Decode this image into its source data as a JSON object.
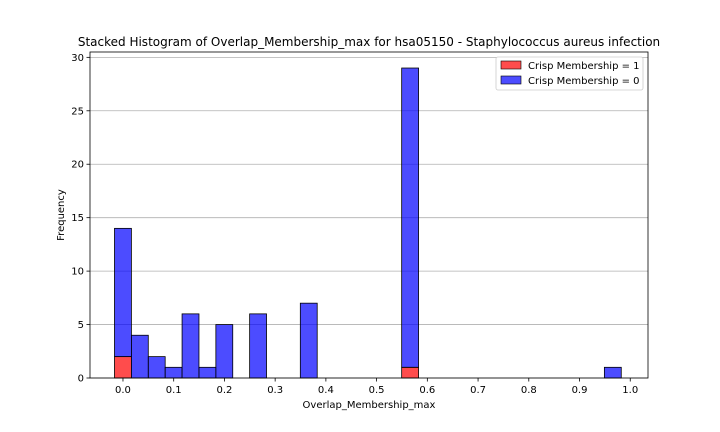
{
  "chart_data": {
    "type": "bar",
    "stacked": true,
    "title": "Stacked Histogram of Overlap_Membership_max for hsa05150 - Staphylococcus aureus infection",
    "xlabel": "Overlap_Membership_max",
    "ylabel": "Frequency",
    "xlim": [
      -0.065,
      1.035
    ],
    "ylim": [
      0,
      30.5
    ],
    "xticks": [
      "0.0",
      "0.1",
      "0.2",
      "0.3",
      "0.4",
      "0.5",
      "0.6",
      "0.7",
      "0.8",
      "0.9",
      "1.0"
    ],
    "yticks": [
      "0",
      "5",
      "10",
      "15",
      "20",
      "25",
      "30"
    ],
    "grid": "y",
    "legend_position": "top-right",
    "bins": {
      "start": -0.0167,
      "width": 0.0333,
      "count": 30
    },
    "series": [
      {
        "name": "Crisp Membership = 1",
        "color": "#ff0000",
        "values": [
          2,
          0,
          0,
          0,
          0,
          0,
          0,
          0,
          0,
          0,
          0,
          0,
          0,
          0,
          0,
          0,
          0,
          1,
          0,
          0,
          0,
          0,
          0,
          0,
          0,
          0,
          0,
          0,
          0,
          0
        ]
      },
      {
        "name": "Crisp Membership = 0",
        "color": "#0000ff",
        "values": [
          12,
          4,
          2,
          1,
          6,
          1,
          5,
          0,
          6,
          0,
          0,
          7,
          0,
          0,
          0,
          0,
          0,
          28,
          0,
          0,
          0,
          0,
          0,
          0,
          0,
          0,
          0,
          0,
          0,
          1
        ]
      }
    ]
  }
}
